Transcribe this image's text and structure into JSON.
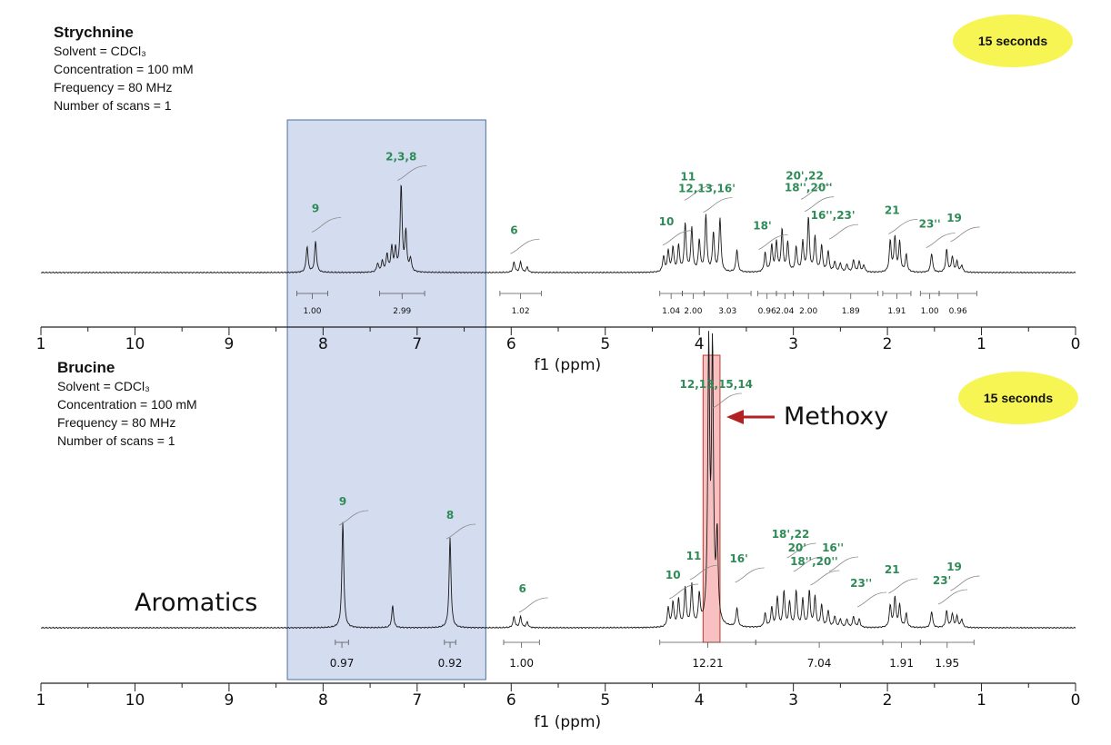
{
  "chart_data": [
    {
      "type": "line",
      "compound": "Strychnine",
      "info": [
        "Solvent = CDCl₃",
        "Concentration = 100 mM",
        "Frequency = 80 MHz",
        "Number of scans = 1"
      ],
      "badge": "15 seconds",
      "xlabel": "f1 (ppm)",
      "xlim": [
        11,
        0
      ],
      "x_ticks": [
        "1",
        "10",
        "9",
        "8",
        "7",
        "6",
        "5",
        "4",
        "3",
        "2",
        "1",
        "0"
      ],
      "peaks": [
        {
          "x": 8.17,
          "h": 0.3
        },
        {
          "x": 8.08,
          "h": 0.36
        },
        {
          "x": 7.42,
          "h": 0.1
        },
        {
          "x": 7.37,
          "h": 0.12
        },
        {
          "x": 7.32,
          "h": 0.2
        },
        {
          "x": 7.27,
          "h": 0.28
        },
        {
          "x": 7.23,
          "h": 0.25
        },
        {
          "x": 7.17,
          "h": 1.0
        },
        {
          "x": 7.12,
          "h": 0.45
        },
        {
          "x": 7.07,
          "h": 0.15
        },
        {
          "x": 5.97,
          "h": 0.12
        },
        {
          "x": 5.9,
          "h": 0.12
        },
        {
          "x": 5.83,
          "h": 0.06
        },
        {
          "x": 4.38,
          "h": 0.18
        },
        {
          "x": 4.33,
          "h": 0.24
        },
        {
          "x": 4.28,
          "h": 0.28
        },
        {
          "x": 4.22,
          "h": 0.3
        },
        {
          "x": 4.15,
          "h": 0.55
        },
        {
          "x": 4.08,
          "h": 0.5
        },
        {
          "x": 4.0,
          "h": 0.36
        },
        {
          "x": 3.93,
          "h": 0.65
        },
        {
          "x": 3.85,
          "h": 0.45
        },
        {
          "x": 3.78,
          "h": 0.62
        },
        {
          "x": 3.6,
          "h": 0.26
        },
        {
          "x": 3.3,
          "h": 0.22
        },
        {
          "x": 3.23,
          "h": 0.3
        },
        {
          "x": 3.18,
          "h": 0.34
        },
        {
          "x": 3.12,
          "h": 0.48
        },
        {
          "x": 3.06,
          "h": 0.34
        },
        {
          "x": 2.97,
          "h": 0.28
        },
        {
          "x": 2.9,
          "h": 0.34
        },
        {
          "x": 2.84,
          "h": 0.62
        },
        {
          "x": 2.77,
          "h": 0.4
        },
        {
          "x": 2.7,
          "h": 0.3
        },
        {
          "x": 2.63,
          "h": 0.24
        },
        {
          "x": 2.56,
          "h": 0.12
        },
        {
          "x": 2.5,
          "h": 0.1
        },
        {
          "x": 2.43,
          "h": 0.09
        },
        {
          "x": 2.36,
          "h": 0.14
        },
        {
          "x": 2.3,
          "h": 0.12
        },
        {
          "x": 2.25,
          "h": 0.08
        },
        {
          "x": 1.97,
          "h": 0.36
        },
        {
          "x": 1.92,
          "h": 0.4
        },
        {
          "x": 1.87,
          "h": 0.34
        },
        {
          "x": 1.8,
          "h": 0.2
        },
        {
          "x": 1.53,
          "h": 0.22
        },
        {
          "x": 1.37,
          "h": 0.26
        },
        {
          "x": 1.31,
          "h": 0.18
        },
        {
          "x": 1.26,
          "h": 0.12
        },
        {
          "x": 1.21,
          "h": 0.08
        }
      ],
      "integrals": [
        {
          "from": 8.28,
          "to": 7.95,
          "value": "1.00"
        },
        {
          "from": 7.4,
          "to": 6.92,
          "value": "2.99"
        },
        {
          "from": 6.12,
          "to": 5.68,
          "value": "1.02"
        },
        {
          "from": 4.42,
          "to": 4.18,
          "value": "1.04"
        },
        {
          "from": 4.18,
          "to": 3.95,
          "value": "2.00"
        },
        {
          "from": 3.95,
          "to": 3.45,
          "value": "3.03"
        },
        {
          "from": 3.38,
          "to": 3.18,
          "value": "0.96"
        },
        {
          "from": 3.18,
          "to": 3.0,
          "value": "2.04"
        },
        {
          "from": 3.0,
          "to": 2.68,
          "value": "2.00"
        },
        {
          "from": 2.68,
          "to": 2.1,
          "value": "1.89"
        },
        {
          "from": 2.05,
          "to": 1.75,
          "value": "1.91"
        },
        {
          "from": 1.65,
          "to": 1.45,
          "value": "1.00"
        },
        {
          "from": 1.45,
          "to": 1.05,
          "value": "0.96"
        }
      ],
      "assignments": [
        {
          "label": "9",
          "x": 8.08,
          "y": 0.7
        },
        {
          "label": "2,3,8",
          "x": 7.17,
          "y": 1.3
        },
        {
          "label": "6",
          "x": 5.97,
          "y": 0.45
        },
        {
          "label": "10",
          "x": 4.35,
          "y": 0.55
        },
        {
          "label": "11",
          "x": 4.12,
          "y": 1.07
        },
        {
          "label": "12,13,16'",
          "x": 3.92,
          "y": 0.93
        },
        {
          "label": "18'",
          "x": 3.33,
          "y": 0.5
        },
        {
          "label": "20',22",
          "x": 2.88,
          "y": 1.08
        },
        {
          "label": "18'',20''",
          "x": 2.84,
          "y": 0.94
        },
        {
          "label": "16'',23'",
          "x": 2.58,
          "y": 0.62
        },
        {
          "label": "21",
          "x": 1.95,
          "y": 0.68
        },
        {
          "label": "23''",
          "x": 1.55,
          "y": 0.52
        },
        {
          "label": "19",
          "x": 1.29,
          "y": 0.59
        }
      ]
    },
    {
      "type": "line",
      "compound": "Brucine",
      "info": [
        "Solvent = CDCl₃",
        "Concentration = 100 mM",
        "Frequency = 80 MHz",
        "Number of scans = 1"
      ],
      "badge": "15 seconds",
      "xlabel": "f1 (ppm)",
      "xlim": [
        11,
        0
      ],
      "x_ticks": [
        "1",
        "10",
        "9",
        "8",
        "7",
        "6",
        "5",
        "4",
        "3",
        "2",
        "1",
        "0"
      ],
      "peaks": [
        {
          "x": 7.79,
          "h": 0.39
        },
        {
          "x": 7.26,
          "h": 0.08
        },
        {
          "x": 6.65,
          "h": 0.33
        },
        {
          "x": 5.97,
          "h": 0.04
        },
        {
          "x": 5.9,
          "h": 0.04
        },
        {
          "x": 5.83,
          "h": 0.02
        },
        {
          "x": 4.33,
          "h": 0.07
        },
        {
          "x": 4.28,
          "h": 0.09
        },
        {
          "x": 4.22,
          "h": 0.1
        },
        {
          "x": 4.15,
          "h": 0.14
        },
        {
          "x": 4.08,
          "h": 0.15
        },
        {
          "x": 4.0,
          "h": 0.11
        },
        {
          "x": 3.9,
          "h": 1.0
        },
        {
          "x": 3.86,
          "h": 0.99
        },
        {
          "x": 3.81,
          "h": 0.32
        },
        {
          "x": 3.6,
          "h": 0.07
        },
        {
          "x": 3.3,
          "h": 0.05
        },
        {
          "x": 3.23,
          "h": 0.07
        },
        {
          "x": 3.17,
          "h": 0.11
        },
        {
          "x": 3.1,
          "h": 0.13
        },
        {
          "x": 3.04,
          "h": 0.09
        },
        {
          "x": 2.97,
          "h": 0.13
        },
        {
          "x": 2.9,
          "h": 0.1
        },
        {
          "x": 2.83,
          "h": 0.13
        },
        {
          "x": 2.77,
          "h": 0.11
        },
        {
          "x": 2.7,
          "h": 0.08
        },
        {
          "x": 2.63,
          "h": 0.06
        },
        {
          "x": 2.56,
          "h": 0.04
        },
        {
          "x": 2.5,
          "h": 0.03
        },
        {
          "x": 2.43,
          "h": 0.03
        },
        {
          "x": 2.36,
          "h": 0.04
        },
        {
          "x": 2.3,
          "h": 0.03
        },
        {
          "x": 1.97,
          "h": 0.08
        },
        {
          "x": 1.92,
          "h": 0.11
        },
        {
          "x": 1.87,
          "h": 0.08
        },
        {
          "x": 1.8,
          "h": 0.05
        },
        {
          "x": 1.53,
          "h": 0.06
        },
        {
          "x": 1.37,
          "h": 0.06
        },
        {
          "x": 1.31,
          "h": 0.05
        },
        {
          "x": 1.26,
          "h": 0.04
        },
        {
          "x": 1.21,
          "h": 0.03
        }
      ],
      "integrals": [
        {
          "from": 7.87,
          "to": 7.73,
          "value": "0.97"
        },
        {
          "from": 6.71,
          "to": 6.59,
          "value": "0.92"
        },
        {
          "from": 6.08,
          "to": 5.7,
          "value": "1.00"
        },
        {
          "from": 4.42,
          "to": 3.4,
          "value": "12.21"
        },
        {
          "from": 3.4,
          "to": 2.05,
          "value": "7.04"
        },
        {
          "from": 2.05,
          "to": 1.65,
          "value": "1.91"
        },
        {
          "from": 1.65,
          "to": 1.08,
          "value": "1.95"
        }
      ],
      "assignments": [
        {
          "label": "9",
          "x": 7.79,
          "y": 0.45
        },
        {
          "label": "8",
          "x": 6.65,
          "y": 0.4
        },
        {
          "label": "6",
          "x": 5.88,
          "y": 0.13
        },
        {
          "label": "10",
          "x": 4.28,
          "y": 0.18
        },
        {
          "label": "11",
          "x": 4.06,
          "y": 0.25
        },
        {
          "label": "12,13,15,14",
          "x": 3.82,
          "y": 0.88
        },
        {
          "label": "16'",
          "x": 3.58,
          "y": 0.24
        },
        {
          "label": "18',22",
          "x": 3.03,
          "y": 0.33
        },
        {
          "label": "20'",
          "x": 2.96,
          "y": 0.28
        },
        {
          "label": "16''",
          "x": 2.58,
          "y": 0.28
        },
        {
          "label": "18'',20''",
          "x": 2.78,
          "y": 0.23
        },
        {
          "label": "23''",
          "x": 2.28,
          "y": 0.15
        },
        {
          "label": "21",
          "x": 1.95,
          "y": 0.2
        },
        {
          "label": "23'",
          "x": 1.42,
          "y": 0.16
        },
        {
          "label": "19",
          "x": 1.29,
          "y": 0.21
        }
      ]
    }
  ],
  "annotations": {
    "methoxy_label": "Methoxy",
    "aromatics_label": "Aromatics",
    "aromatics_region_ppm": [
      8.38,
      6.27
    ],
    "methoxy_region_ppm": [
      3.96,
      3.78
    ]
  },
  "colors": {
    "spectrum": "#1a1a1a",
    "assignment_text": "#2e8b57",
    "aromatic_region": "#ccd6ec",
    "aromatic_border": "#4a6fa5",
    "methoxy_region": "#f7b9b9",
    "methoxy_border": "#c0392b",
    "arrow": "#b22222",
    "badge": "#f7f554",
    "integral_curve": "#888888"
  }
}
